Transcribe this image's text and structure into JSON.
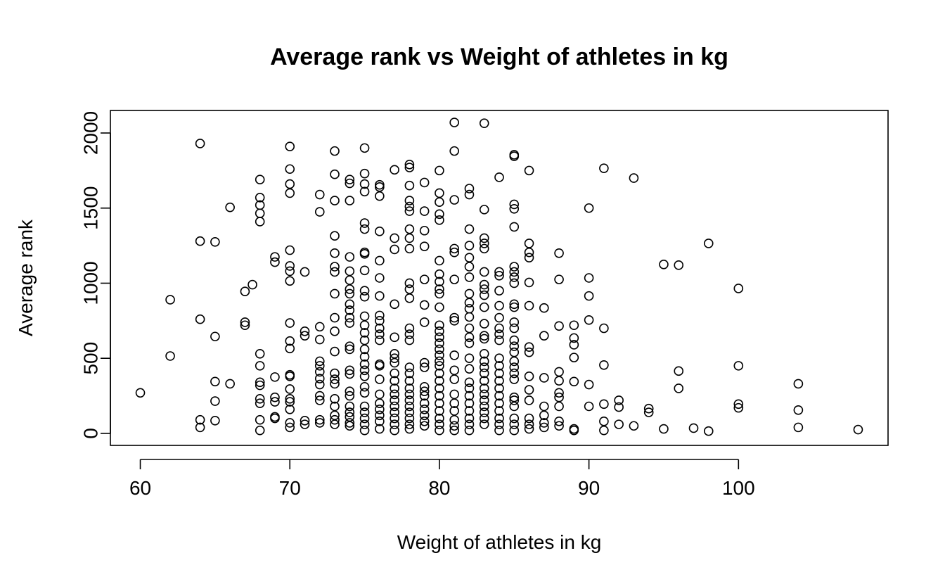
{
  "chart_data": {
    "type": "scatter",
    "title": "Average rank vs Weight of athletes in kg",
    "xlabel": "Weight of athletes in kg",
    "ylabel": "Average rank",
    "xlim": [
      58,
      110
    ],
    "ylim": [
      -80,
      2150
    ],
    "xticks": [
      60,
      70,
      80,
      90,
      100
    ],
    "yticks": [
      0,
      500,
      1000,
      1500,
      2000
    ],
    "xtick_labels": [
      "60",
      "70",
      "80",
      "90",
      "100"
    ],
    "ytick_labels": [
      "0",
      "500",
      "1000",
      "1500",
      "2000"
    ],
    "marker": "open-circle",
    "grid": false,
    "legend": "none",
    "points": [
      [
        60,
        270
      ],
      [
        62,
        890
      ],
      [
        62,
        515
      ],
      [
        64,
        1930
      ],
      [
        64,
        1280
      ],
      [
        64,
        760
      ],
      [
        64,
        90
      ],
      [
        64,
        40
      ],
      [
        65,
        1275
      ],
      [
        65,
        645
      ],
      [
        65,
        345
      ],
      [
        65,
        215
      ],
      [
        65,
        85
      ],
      [
        66,
        1505
      ],
      [
        66,
        330
      ],
      [
        67,
        945
      ],
      [
        67,
        740
      ],
      [
        67,
        720
      ],
      [
        67.5,
        990
      ],
      [
        68,
        1690
      ],
      [
        68,
        1570
      ],
      [
        68,
        1520
      ],
      [
        68,
        1465
      ],
      [
        68,
        1410
      ],
      [
        68,
        530
      ],
      [
        68,
        450
      ],
      [
        68,
        340
      ],
      [
        68,
        320
      ],
      [
        68,
        230
      ],
      [
        68,
        200
      ],
      [
        68,
        90
      ],
      [
        68,
        20
      ],
      [
        69,
        1175
      ],
      [
        69,
        1140
      ],
      [
        69,
        375
      ],
      [
        69,
        240
      ],
      [
        69,
        210
      ],
      [
        69,
        110
      ],
      [
        69,
        100
      ],
      [
        70,
        1910
      ],
      [
        70,
        1760
      ],
      [
        70,
        1660
      ],
      [
        70,
        1600
      ],
      [
        70,
        1220
      ],
      [
        70,
        1115
      ],
      [
        70,
        1080
      ],
      [
        70,
        1015
      ],
      [
        70,
        735
      ],
      [
        70,
        615
      ],
      [
        70,
        565
      ],
      [
        70,
        390
      ],
      [
        70,
        380
      ],
      [
        70,
        295
      ],
      [
        70,
        230
      ],
      [
        70,
        210
      ],
      [
        70,
        160
      ],
      [
        70,
        70
      ],
      [
        70,
        40
      ],
      [
        71,
        1075
      ],
      [
        71,
        680
      ],
      [
        71,
        650
      ],
      [
        71,
        85
      ],
      [
        71,
        60
      ],
      [
        72,
        1590
      ],
      [
        72,
        1475
      ],
      [
        72,
        710
      ],
      [
        72,
        625
      ],
      [
        72,
        480
      ],
      [
        72,
        450
      ],
      [
        72,
        410
      ],
      [
        72,
        365
      ],
      [
        72,
        325
      ],
      [
        72,
        250
      ],
      [
        72,
        220
      ],
      [
        72,
        90
      ],
      [
        72,
        70
      ],
      [
        73,
        1880
      ],
      [
        73,
        1725
      ],
      [
        73,
        1550
      ],
      [
        73,
        1315
      ],
      [
        73,
        1200
      ],
      [
        73,
        1110
      ],
      [
        73,
        1075
      ],
      [
        73,
        930
      ],
      [
        73,
        770
      ],
      [
        73,
        680
      ],
      [
        73,
        545
      ],
      [
        73,
        400
      ],
      [
        73,
        360
      ],
      [
        73,
        330
      ],
      [
        73,
        230
      ],
      [
        73,
        180
      ],
      [
        73,
        120
      ],
      [
        73,
        90
      ],
      [
        73,
        60
      ],
      [
        74,
        1690
      ],
      [
        74,
        1665
      ],
      [
        74,
        1550
      ],
      [
        74,
        1175
      ],
      [
        74,
        1080
      ],
      [
        74,
        1020
      ],
      [
        74,
        960
      ],
      [
        74,
        930
      ],
      [
        74,
        860
      ],
      [
        74,
        820
      ],
      [
        74,
        770
      ],
      [
        74,
        735
      ],
      [
        74,
        580
      ],
      [
        74,
        560
      ],
      [
        74,
        420
      ],
      [
        74,
        395
      ],
      [
        74,
        280
      ],
      [
        74,
        250
      ],
      [
        74,
        180
      ],
      [
        74,
        140
      ],
      [
        74,
        110
      ],
      [
        74,
        70
      ],
      [
        74,
        50
      ],
      [
        75,
        1900
      ],
      [
        75,
        1730
      ],
      [
        75,
        1660
      ],
      [
        75,
        1610
      ],
      [
        75,
        1400
      ],
      [
        75,
        1360
      ],
      [
        75,
        1205
      ],
      [
        75,
        1195
      ],
      [
        75,
        1085
      ],
      [
        75,
        950
      ],
      [
        75,
        910
      ],
      [
        75,
        780
      ],
      [
        75,
        720
      ],
      [
        75,
        670
      ],
      [
        75,
        620
      ],
      [
        75,
        560
      ],
      [
        75,
        510
      ],
      [
        75,
        460
      ],
      [
        75,
        420
      ],
      [
        75,
        380
      ],
      [
        75,
        310
      ],
      [
        75,
        270
      ],
      [
        75,
        180
      ],
      [
        75,
        140
      ],
      [
        75,
        100
      ],
      [
        75,
        60
      ],
      [
        75,
        20
      ],
      [
        76,
        1655
      ],
      [
        76,
        1640
      ],
      [
        76,
        1580
      ],
      [
        76,
        1345
      ],
      [
        76,
        1150
      ],
      [
        76,
        1035
      ],
      [
        76,
        915
      ],
      [
        76,
        785
      ],
      [
        76,
        750
      ],
      [
        76,
        700
      ],
      [
        76,
        660
      ],
      [
        76,
        620
      ],
      [
        76,
        460
      ],
      [
        76,
        450
      ],
      [
        76,
        360
      ],
      [
        76,
        260
      ],
      [
        76,
        200
      ],
      [
        76,
        160
      ],
      [
        76,
        120
      ],
      [
        76,
        80
      ],
      [
        76,
        30
      ],
      [
        77,
        1755
      ],
      [
        77,
        1300
      ],
      [
        77,
        1225
      ],
      [
        77,
        860
      ],
      [
        77,
        640
      ],
      [
        77,
        530
      ],
      [
        77,
        500
      ],
      [
        77,
        470
      ],
      [
        77,
        400
      ],
      [
        77,
        350
      ],
      [
        77,
        300
      ],
      [
        77,
        260
      ],
      [
        77,
        220
      ],
      [
        77,
        180
      ],
      [
        77,
        140
      ],
      [
        77,
        100
      ],
      [
        77,
        60
      ],
      [
        77,
        20
      ],
      [
        78,
        1790
      ],
      [
        78,
        1770
      ],
      [
        78,
        1650
      ],
      [
        78,
        1550
      ],
      [
        78,
        1510
      ],
      [
        78,
        1480
      ],
      [
        78,
        1360
      ],
      [
        78,
        1300
      ],
      [
        78,
        1230
      ],
      [
        78,
        1000
      ],
      [
        78,
        960
      ],
      [
        78,
        900
      ],
      [
        78,
        700
      ],
      [
        78,
        660
      ],
      [
        78,
        620
      ],
      [
        78,
        440
      ],
      [
        78,
        400
      ],
      [
        78,
        350
      ],
      [
        78,
        300
      ],
      [
        78,
        260
      ],
      [
        78,
        220
      ],
      [
        78,
        180
      ],
      [
        78,
        140
      ],
      [
        78,
        100
      ],
      [
        78,
        60
      ],
      [
        78,
        30
      ],
      [
        79,
        1670
      ],
      [
        79,
        1480
      ],
      [
        79,
        1350
      ],
      [
        79,
        1245
      ],
      [
        79,
        1025
      ],
      [
        79,
        855
      ],
      [
        79,
        740
      ],
      [
        79,
        470
      ],
      [
        79,
        440
      ],
      [
        79,
        310
      ],
      [
        79,
        280
      ],
      [
        79,
        250
      ],
      [
        79,
        200
      ],
      [
        79,
        160
      ],
      [
        79,
        120
      ],
      [
        79,
        80
      ],
      [
        79,
        50
      ],
      [
        80,
        1750
      ],
      [
        80,
        1600
      ],
      [
        80,
        1540
      ],
      [
        80,
        1460
      ],
      [
        80,
        1420
      ],
      [
        80,
        1150
      ],
      [
        80,
        1060
      ],
      [
        80,
        1010
      ],
      [
        80,
        960
      ],
      [
        80,
        930
      ],
      [
        80,
        840
      ],
      [
        80,
        720
      ],
      [
        80,
        680
      ],
      [
        80,
        640
      ],
      [
        80,
        600
      ],
      [
        80,
        560
      ],
      [
        80,
        520
      ],
      [
        80,
        480
      ],
      [
        80,
        450
      ],
      [
        80,
        400
      ],
      [
        80,
        350
      ],
      [
        80,
        300
      ],
      [
        80,
        250
      ],
      [
        80,
        200
      ],
      [
        80,
        150
      ],
      [
        80,
        100
      ],
      [
        80,
        60
      ],
      [
        80,
        20
      ],
      [
        81,
        2070
      ],
      [
        81,
        1880
      ],
      [
        81,
        1555
      ],
      [
        81,
        1230
      ],
      [
        81,
        1205
      ],
      [
        81,
        1025
      ],
      [
        81,
        770
      ],
      [
        81,
        750
      ],
      [
        81,
        520
      ],
      [
        81,
        420
      ],
      [
        81,
        360
      ],
      [
        81,
        260
      ],
      [
        81,
        200
      ],
      [
        81,
        150
      ],
      [
        81,
        90
      ],
      [
        81,
        50
      ],
      [
        81,
        20
      ],
      [
        82,
        1630
      ],
      [
        82,
        1590
      ],
      [
        82,
        1360
      ],
      [
        82,
        1250
      ],
      [
        82,
        1170
      ],
      [
        82,
        1110
      ],
      [
        82,
        1040
      ],
      [
        82,
        930
      ],
      [
        82,
        870
      ],
      [
        82,
        830
      ],
      [
        82,
        775
      ],
      [
        82,
        700
      ],
      [
        82,
        640
      ],
      [
        82,
        600
      ],
      [
        82,
        500
      ],
      [
        82,
        430
      ],
      [
        82,
        340
      ],
      [
        82,
        300
      ],
      [
        82,
        250
      ],
      [
        82,
        200
      ],
      [
        82,
        150
      ],
      [
        82,
        100
      ],
      [
        82,
        60
      ],
      [
        82,
        20
      ],
      [
        83,
        2065
      ],
      [
        83,
        1490
      ],
      [
        83,
        1300
      ],
      [
        83,
        1265
      ],
      [
        83,
        1230
      ],
      [
        83,
        1075
      ],
      [
        83,
        990
      ],
      [
        83,
        960
      ],
      [
        83,
        920
      ],
      [
        83,
        840
      ],
      [
        83,
        730
      ],
      [
        83,
        650
      ],
      [
        83,
        630
      ],
      [
        83,
        530
      ],
      [
        83,
        480
      ],
      [
        83,
        440
      ],
      [
        83,
        400
      ],
      [
        83,
        350
      ],
      [
        83,
        300
      ],
      [
        83,
        260
      ],
      [
        83,
        220
      ],
      [
        83,
        180
      ],
      [
        83,
        140
      ],
      [
        83,
        100
      ],
      [
        83,
        60
      ],
      [
        84,
        1705
      ],
      [
        84,
        1075
      ],
      [
        84,
        1050
      ],
      [
        84,
        950
      ],
      [
        84,
        850
      ],
      [
        84,
        770
      ],
      [
        84,
        700
      ],
      [
        84,
        660
      ],
      [
        84,
        620
      ],
      [
        84,
        500
      ],
      [
        84,
        450
      ],
      [
        84,
        400
      ],
      [
        84,
        350
      ],
      [
        84,
        300
      ],
      [
        84,
        250
      ],
      [
        84,
        200
      ],
      [
        84,
        150
      ],
      [
        84,
        100
      ],
      [
        84,
        60
      ],
      [
        84,
        20
      ],
      [
        85,
        1855
      ],
      [
        85,
        1845
      ],
      [
        85,
        1525
      ],
      [
        85,
        1495
      ],
      [
        85,
        1375
      ],
      [
        85,
        1110
      ],
      [
        85,
        1075
      ],
      [
        85,
        1040
      ],
      [
        85,
        1000
      ],
      [
        85,
        860
      ],
      [
        85,
        840
      ],
      [
        85,
        740
      ],
      [
        85,
        700
      ],
      [
        85,
        620
      ],
      [
        85,
        580
      ],
      [
        85,
        540
      ],
      [
        85,
        480
      ],
      [
        85,
        440
      ],
      [
        85,
        400
      ],
      [
        85,
        360
      ],
      [
        85,
        240
      ],
      [
        85,
        220
      ],
      [
        85,
        180
      ],
      [
        85,
        100
      ],
      [
        85,
        60
      ],
      [
        85,
        20
      ],
      [
        86,
        1750
      ],
      [
        86,
        1265
      ],
      [
        86,
        1205
      ],
      [
        86,
        1170
      ],
      [
        86,
        1005
      ],
      [
        86,
        850
      ],
      [
        86,
        575
      ],
      [
        86,
        540
      ],
      [
        86,
        380
      ],
      [
        86,
        290
      ],
      [
        86,
        220
      ],
      [
        86,
        100
      ],
      [
        86,
        60
      ],
      [
        86,
        30
      ],
      [
        87,
        835
      ],
      [
        87,
        650
      ],
      [
        87,
        370
      ],
      [
        87,
        180
      ],
      [
        87,
        120
      ],
      [
        87,
        70
      ],
      [
        87,
        40
      ],
      [
        88,
        1200
      ],
      [
        88,
        1025
      ],
      [
        88,
        715
      ],
      [
        88,
        410
      ],
      [
        88,
        350
      ],
      [
        88,
        270
      ],
      [
        88,
        240
      ],
      [
        88,
        180
      ],
      [
        88,
        80
      ],
      [
        88,
        50
      ],
      [
        89,
        720
      ],
      [
        89,
        635
      ],
      [
        89,
        590
      ],
      [
        89,
        505
      ],
      [
        89,
        345
      ],
      [
        89,
        30
      ],
      [
        89,
        20
      ],
      [
        90,
        1500
      ],
      [
        90,
        1035
      ],
      [
        90,
        915
      ],
      [
        90,
        755
      ],
      [
        90,
        325
      ],
      [
        90,
        180
      ],
      [
        91,
        1765
      ],
      [
        91,
        700
      ],
      [
        91,
        455
      ],
      [
        91,
        195
      ],
      [
        91,
        80
      ],
      [
        91,
        20
      ],
      [
        92,
        220
      ],
      [
        92,
        175
      ],
      [
        92,
        60
      ],
      [
        93,
        1700
      ],
      [
        93,
        50
      ],
      [
        94,
        165
      ],
      [
        94,
        140
      ],
      [
        95,
        1125
      ],
      [
        95,
        30
      ],
      [
        96,
        1120
      ],
      [
        96,
        415
      ],
      [
        96,
        300
      ],
      [
        97,
        35
      ],
      [
        98,
        1265
      ],
      [
        98,
        15
      ],
      [
        100,
        965
      ],
      [
        100,
        450
      ],
      [
        100,
        195
      ],
      [
        100,
        170
      ],
      [
        104,
        330
      ],
      [
        104,
        155
      ],
      [
        104,
        40
      ],
      [
        108,
        25
      ]
    ]
  }
}
